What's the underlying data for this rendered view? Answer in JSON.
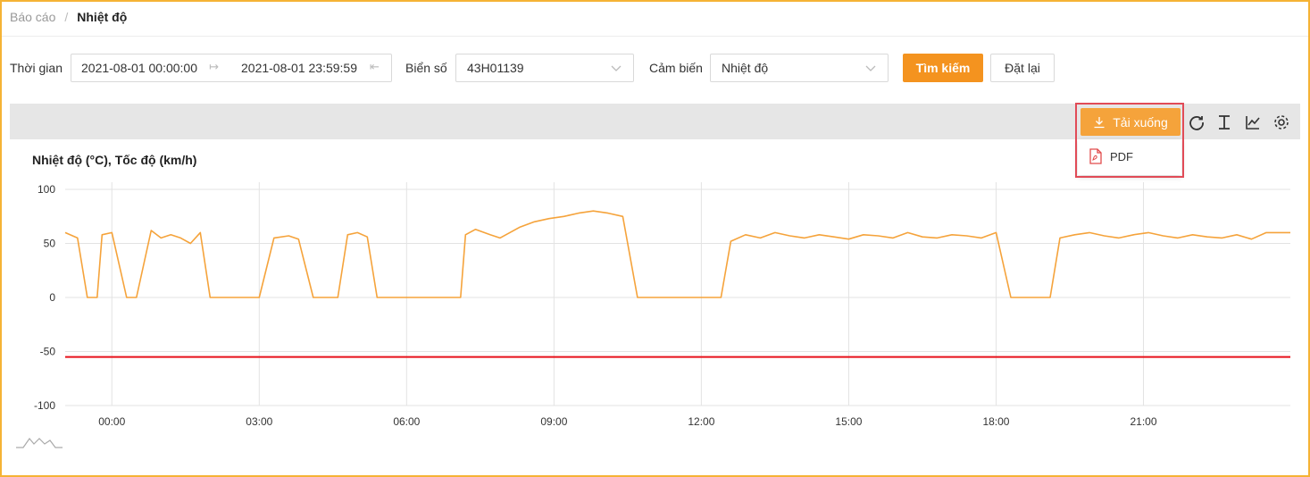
{
  "breadcrumb": {
    "parent": "Báo cáo",
    "separator": "/",
    "current": "Nhiệt độ"
  },
  "filters": {
    "time_label": "Thời gian",
    "time_from": "2021-08-01 00:00:00",
    "time_to": "2021-08-01 23:59:59",
    "plate_label": "Biển số",
    "plate_value": "43H01139",
    "sensor_label": "Cảm biến",
    "sensor_value": "Nhiệt độ",
    "search_button": "Tìm kiếm",
    "reset_button": "Đặt lại"
  },
  "toolbar": {
    "download_label": "Tải xuống",
    "icons": [
      "refresh-icon",
      "text-cursor-icon",
      "line-chart-icon",
      "settings-icon"
    ],
    "menu": {
      "items": [
        {
          "label": "PDF",
          "icon": "pdf-file-icon"
        }
      ]
    }
  },
  "chart_data": {
    "type": "line",
    "title": "Nhiệt độ (°C), Tốc độ (km/h)",
    "xlabel": "",
    "ylabel": "",
    "ylim": [
      -100,
      100
    ],
    "yticks": [
      "100",
      "50",
      "0",
      "-50",
      "-100"
    ],
    "xticks": [
      "00:00",
      "03:00",
      "06:00",
      "09:00",
      "12:00",
      "15:00",
      "18:00",
      "21:00"
    ],
    "grid": true,
    "x_range_hours": [
      -0.95,
      23.99
    ],
    "series": [
      {
        "color": "#f5a33b",
        "points": [
          [
            -0.95,
            60
          ],
          [
            -0.7,
            55
          ],
          [
            -0.5,
            0
          ],
          [
            -0.3,
            0
          ],
          [
            -0.2,
            58
          ],
          [
            0.0,
            60
          ],
          [
            0.3,
            0
          ],
          [
            0.5,
            0
          ],
          [
            0.8,
            62
          ],
          [
            1.0,
            55
          ],
          [
            1.2,
            58
          ],
          [
            1.4,
            55
          ],
          [
            1.6,
            50
          ],
          [
            1.8,
            60
          ],
          [
            2.0,
            0
          ],
          [
            2.5,
            0
          ],
          [
            3.0,
            0
          ],
          [
            3.3,
            55
          ],
          [
            3.6,
            57
          ],
          [
            3.8,
            54
          ],
          [
            4.1,
            0
          ],
          [
            4.6,
            0
          ],
          [
            4.8,
            58
          ],
          [
            5.0,
            60
          ],
          [
            5.2,
            56
          ],
          [
            5.4,
            0
          ],
          [
            5.8,
            0
          ],
          [
            6.5,
            0
          ],
          [
            7.1,
            0
          ],
          [
            7.2,
            58
          ],
          [
            7.4,
            63
          ],
          [
            7.7,
            58
          ],
          [
            7.9,
            55
          ],
          [
            8.1,
            60
          ],
          [
            8.3,
            65
          ],
          [
            8.6,
            70
          ],
          [
            8.9,
            73
          ],
          [
            9.2,
            75
          ],
          [
            9.5,
            78
          ],
          [
            9.8,
            80
          ],
          [
            10.1,
            78
          ],
          [
            10.4,
            75
          ],
          [
            10.7,
            0
          ],
          [
            11.0,
            0
          ],
          [
            11.5,
            0
          ],
          [
            12.0,
            0
          ],
          [
            12.4,
            0
          ],
          [
            12.6,
            52
          ],
          [
            12.9,
            58
          ],
          [
            13.2,
            55
          ],
          [
            13.5,
            60
          ],
          [
            13.8,
            57
          ],
          [
            14.1,
            55
          ],
          [
            14.4,
            58
          ],
          [
            14.7,
            56
          ],
          [
            15.0,
            54
          ],
          [
            15.3,
            58
          ],
          [
            15.6,
            57
          ],
          [
            15.9,
            55
          ],
          [
            16.2,
            60
          ],
          [
            16.5,
            56
          ],
          [
            16.8,
            55
          ],
          [
            17.1,
            58
          ],
          [
            17.4,
            57
          ],
          [
            17.7,
            55
          ],
          [
            18.0,
            60
          ],
          [
            18.3,
            0
          ],
          [
            18.8,
            0
          ],
          [
            19.1,
            0
          ],
          [
            19.3,
            55
          ],
          [
            19.6,
            58
          ],
          [
            19.9,
            60
          ],
          [
            20.2,
            57
          ],
          [
            20.5,
            55
          ],
          [
            20.8,
            58
          ],
          [
            21.1,
            60
          ],
          [
            21.4,
            57
          ],
          [
            21.7,
            55
          ],
          [
            22.0,
            58
          ],
          [
            22.3,
            56
          ],
          [
            22.6,
            55
          ],
          [
            22.9,
            58
          ],
          [
            23.2,
            54
          ],
          [
            23.5,
            60
          ],
          [
            23.99,
            60
          ]
        ]
      },
      {
        "color": "#e8101a",
        "points": [
          [
            -0.95,
            -55
          ],
          [
            23.99,
            -55
          ]
        ]
      }
    ]
  }
}
